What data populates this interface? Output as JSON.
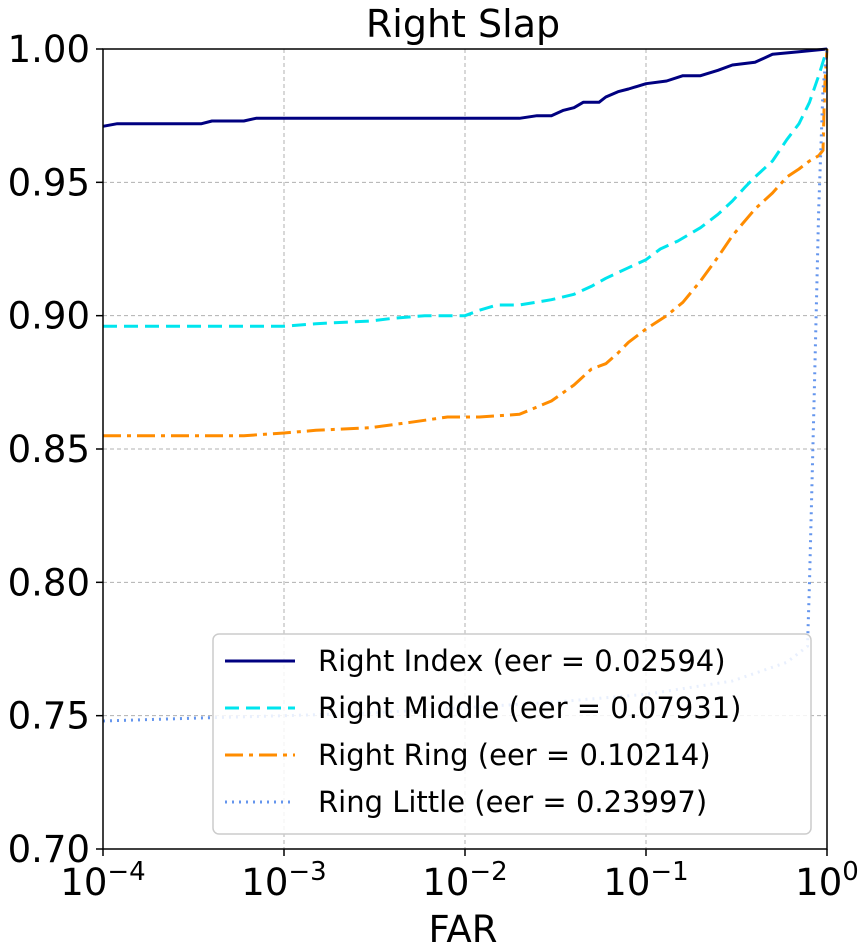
{
  "chart_data": {
    "type": "line",
    "title": "Right Slap",
    "xlabel": "FAR",
    "ylabel": "",
    "xscale": "log",
    "xlim": [
      0.0001,
      1
    ],
    "ylim": [
      0.7,
      1.0
    ],
    "x_ticks": [
      {
        "base": "10",
        "exp": "−4"
      },
      {
        "base": "10",
        "exp": "−3"
      },
      {
        "base": "10",
        "exp": "−2"
      },
      {
        "base": "10",
        "exp": "−1"
      },
      {
        "base": "10",
        "exp": "0"
      }
    ],
    "y_ticks": [
      "0.70",
      "0.75",
      "0.80",
      "0.85",
      "0.90",
      "0.95",
      "1.00"
    ],
    "grid": true,
    "legend_position": "lower-right",
    "series": [
      {
        "name": "Right Index (eer = 0.02594)",
        "color": "#000080",
        "style": "solid",
        "points": [
          [
            0.0001,
            0.971
          ],
          [
            0.00012,
            0.972
          ],
          [
            0.0002,
            0.972
          ],
          [
            0.00035,
            0.972
          ],
          [
            0.0004,
            0.973
          ],
          [
            0.0006,
            0.973
          ],
          [
            0.0007,
            0.974
          ],
          [
            0.001,
            0.974
          ],
          [
            0.003,
            0.974
          ],
          [
            0.01,
            0.974
          ],
          [
            0.02,
            0.974
          ],
          [
            0.025,
            0.975
          ],
          [
            0.03,
            0.975
          ],
          [
            0.035,
            0.977
          ],
          [
            0.04,
            0.978
          ],
          [
            0.045,
            0.98
          ],
          [
            0.055,
            0.98
          ],
          [
            0.06,
            0.982
          ],
          [
            0.07,
            0.984
          ],
          [
            0.08,
            0.985
          ],
          [
            0.1,
            0.987
          ],
          [
            0.13,
            0.988
          ],
          [
            0.16,
            0.99
          ],
          [
            0.2,
            0.99
          ],
          [
            0.25,
            0.992
          ],
          [
            0.3,
            0.994
          ],
          [
            0.4,
            0.995
          ],
          [
            0.5,
            0.998
          ],
          [
            0.7,
            0.999
          ],
          [
            1.0,
            1.0
          ]
        ]
      },
      {
        "name": "Right Middle (eer = 0.07931)",
        "color": "#00e5ee",
        "style": "dashed",
        "points": [
          [
            0.0001,
            0.896
          ],
          [
            0.0005,
            0.896
          ],
          [
            0.001,
            0.896
          ],
          [
            0.0015,
            0.897
          ],
          [
            0.003,
            0.898
          ],
          [
            0.004,
            0.899
          ],
          [
            0.006,
            0.9
          ],
          [
            0.01,
            0.9
          ],
          [
            0.012,
            0.902
          ],
          [
            0.015,
            0.904
          ],
          [
            0.02,
            0.904
          ],
          [
            0.03,
            0.906
          ],
          [
            0.04,
            0.908
          ],
          [
            0.05,
            0.911
          ],
          [
            0.06,
            0.914
          ],
          [
            0.08,
            0.918
          ],
          [
            0.1,
            0.921
          ],
          [
            0.12,
            0.925
          ],
          [
            0.15,
            0.928
          ],
          [
            0.2,
            0.933
          ],
          [
            0.25,
            0.938
          ],
          [
            0.3,
            0.943
          ],
          [
            0.35,
            0.948
          ],
          [
            0.4,
            0.952
          ],
          [
            0.5,
            0.958
          ],
          [
            0.6,
            0.966
          ],
          [
            0.7,
            0.972
          ],
          [
            0.8,
            0.98
          ],
          [
            0.9,
            0.99
          ],
          [
            1.0,
            1.0
          ]
        ]
      },
      {
        "name": "Right Ring (eer = 0.10214)",
        "color": "#ff8c00",
        "style": "dashdot",
        "points": [
          [
            0.0001,
            0.855
          ],
          [
            0.0002,
            0.855
          ],
          [
            0.0004,
            0.855
          ],
          [
            0.0006,
            0.855
          ],
          [
            0.001,
            0.856
          ],
          [
            0.0015,
            0.857
          ],
          [
            0.003,
            0.858
          ],
          [
            0.005,
            0.86
          ],
          [
            0.008,
            0.862
          ],
          [
            0.012,
            0.862
          ],
          [
            0.02,
            0.863
          ],
          [
            0.03,
            0.868
          ],
          [
            0.04,
            0.874
          ],
          [
            0.05,
            0.88
          ],
          [
            0.06,
            0.882
          ],
          [
            0.07,
            0.886
          ],
          [
            0.08,
            0.89
          ],
          [
            0.1,
            0.895
          ],
          [
            0.13,
            0.9
          ],
          [
            0.16,
            0.905
          ],
          [
            0.2,
            0.913
          ],
          [
            0.25,
            0.922
          ],
          [
            0.3,
            0.93
          ],
          [
            0.4,
            0.94
          ],
          [
            0.5,
            0.946
          ],
          [
            0.6,
            0.952
          ],
          [
            0.7,
            0.955
          ],
          [
            0.8,
            0.958
          ],
          [
            0.9,
            0.96
          ],
          [
            0.95,
            0.962
          ],
          [
            0.97,
            0.985
          ],
          [
            1.0,
            1.0
          ]
        ]
      },
      {
        "name": "Ring Little (eer = 0.23997)",
        "color": "#6495ed",
        "style": "dotted",
        "points": [
          [
            0.0001,
            0.748
          ],
          [
            0.0003,
            0.749
          ],
          [
            0.001,
            0.75
          ],
          [
            0.003,
            0.751
          ],
          [
            0.01,
            0.753
          ],
          [
            0.03,
            0.755
          ],
          [
            0.1,
            0.758
          ],
          [
            0.3,
            0.763
          ],
          [
            0.6,
            0.77
          ],
          [
            0.78,
            0.776
          ],
          [
            0.8,
            0.8
          ],
          [
            0.85,
            0.87
          ],
          [
            0.9,
            0.94
          ],
          [
            0.95,
            0.985
          ],
          [
            1.0,
            1.0
          ]
        ]
      }
    ]
  }
}
